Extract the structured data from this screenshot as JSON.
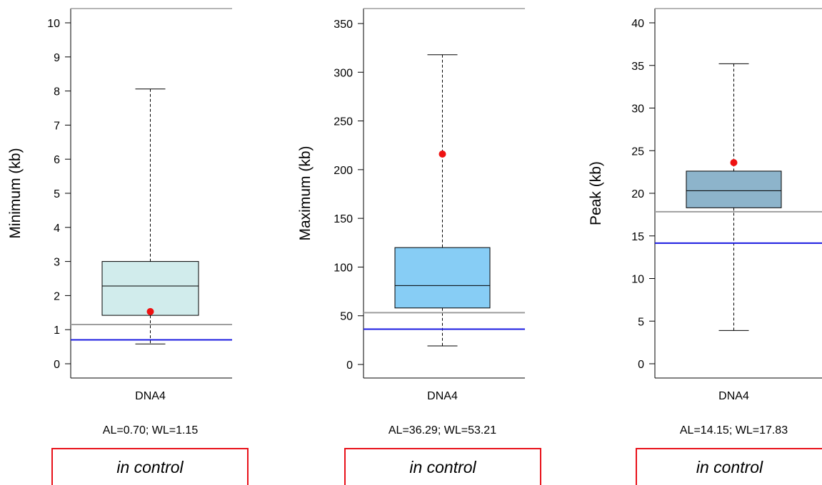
{
  "chart_data": [
    {
      "type": "boxplot",
      "ylabel": "Minimum (kb)",
      "categories": [
        "DNA4"
      ],
      "ylim": [
        0,
        10
      ],
      "yticks": [
        0,
        1,
        2,
        3,
        4,
        5,
        6,
        7,
        8,
        9,
        10
      ],
      "box": {
        "whisker_low": 0.58,
        "q1": 1.42,
        "median": 2.28,
        "q3": 3.0,
        "whisker_high": 8.06
      },
      "point": 1.53,
      "al": 0.7,
      "wl": 1.15,
      "box_color": "#d1ecec",
      "footer": "AL=0.70; WL=1.15",
      "status": "in control"
    },
    {
      "type": "boxplot",
      "ylabel": "Maximum (kb)",
      "categories": [
        "DNA4"
      ],
      "ylim": [
        0,
        350
      ],
      "yticks": [
        0,
        50,
        100,
        150,
        200,
        250,
        300,
        350
      ],
      "box": {
        "whisker_low": 19,
        "q1": 58,
        "median": 81,
        "q3": 120,
        "whisker_high": 318
      },
      "point": 216,
      "al": 36.29,
      "wl": 53.21,
      "box_color": "#87cdf5",
      "footer": "AL=36.29; WL=53.21",
      "status": "in control"
    },
    {
      "type": "boxplot",
      "ylabel": "Peak (kb)",
      "categories": [
        "DNA4"
      ],
      "ylim": [
        0,
        40
      ],
      "yticks": [
        0,
        5,
        10,
        15,
        20,
        25,
        30,
        35,
        40
      ],
      "box": {
        "whisker_low": 3.9,
        "q1": 18.3,
        "median": 20.3,
        "q3": 22.6,
        "whisker_high": 35.2
      },
      "point": 23.6,
      "al": 14.15,
      "wl": 17.83,
      "box_color": "#8db4cb",
      "footer": "AL=14.15; WL=17.83",
      "status": "in control"
    }
  ],
  "colors": {
    "al_line": "#1a1ae0",
    "wl_line": "#9e9e9e",
    "point": "#ee1111",
    "status_border": "#e8111a"
  }
}
